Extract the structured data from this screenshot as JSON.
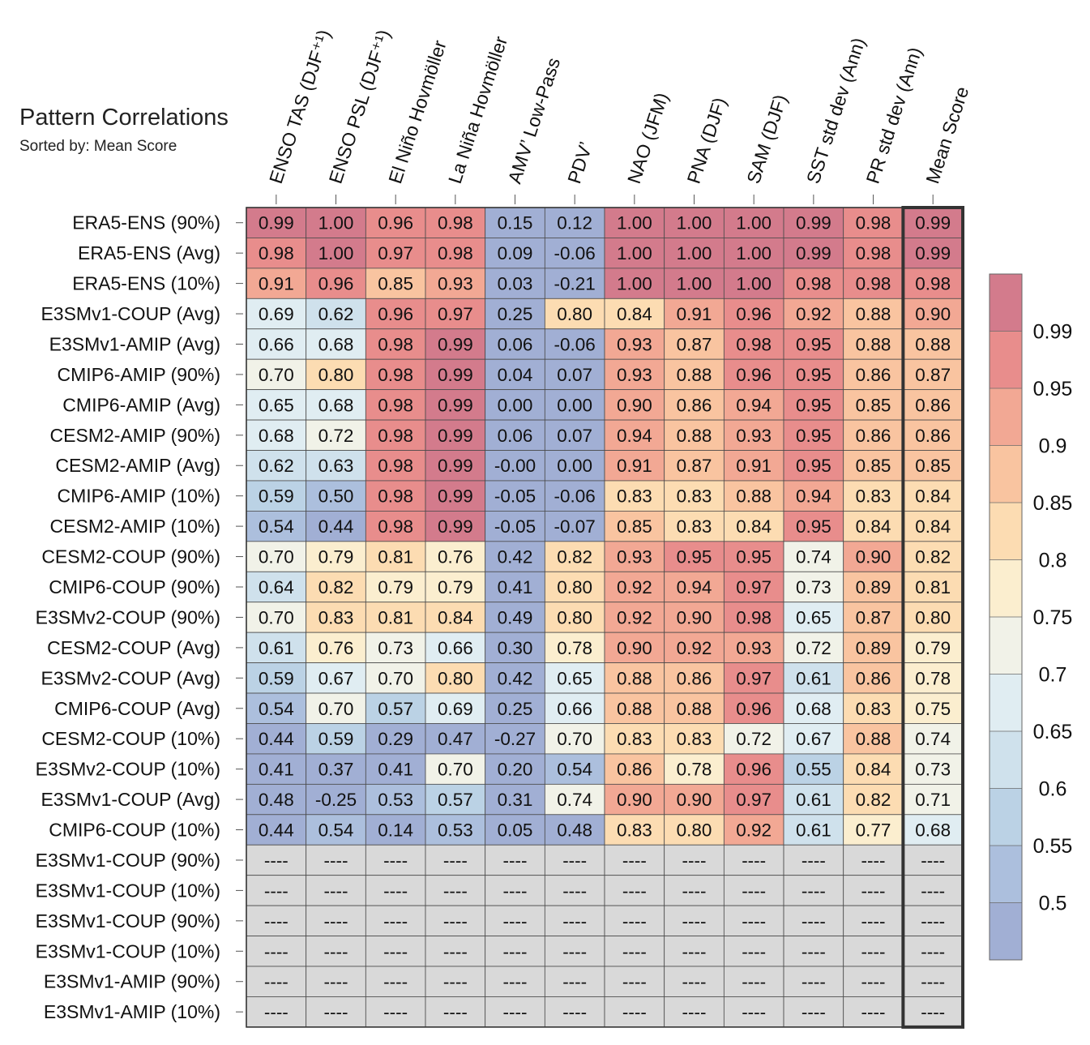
{
  "chart_data": {
    "type": "heatmap",
    "title": "Pattern Correlations",
    "subtitle": "Sorted by: Mean Score",
    "columns": [
      "ENSO TAS (DJF⁺¹)",
      "ENSO PSL (DJF⁺¹)",
      "El Niño Hovmöller",
      "La Niña Hovmöller",
      "AMV’ Low-Pass",
      "PDV’",
      "NAO (JFM)",
      "PNA (DJF)",
      "SAM (DJF)",
      "SST std dev (Ann)",
      "PR std dev (Ann)",
      "Mean Score"
    ],
    "highlighted_column": "Mean Score",
    "rows": [
      "ERA5-ENS (90%)",
      "ERA5-ENS (Avg)",
      "ERA5-ENS (10%)",
      "E3SMv1-COUP (Avg)",
      "E3SMv1-AMIP (Avg)",
      "CMIP6-AMIP (90%)",
      "CMIP6-AMIP (Avg)",
      "CESM2-AMIP (90%)",
      "CESM2-AMIP (Avg)",
      "CMIP6-AMIP (10%)",
      "CESM2-AMIP (10%)",
      "CESM2-COUP (90%)",
      "CMIP6-COUP (90%)",
      "E3SMv2-COUP (90%)",
      "CESM2-COUP (Avg)",
      "E3SMv2-COUP (Avg)",
      "CMIP6-COUP (Avg)",
      "CESM2-COUP (10%)",
      "E3SMv2-COUP (10%)",
      "E3SMv1-COUP (Avg)",
      "CMIP6-COUP (10%)",
      "E3SMv1-COUP (90%)",
      "E3SMv1-COUP (10%)",
      "E3SMv1-COUP (90%)",
      "E3SMv1-COUP (10%)",
      "E3SMv1-AMIP (90%)",
      "E3SMv1-AMIP (10%)"
    ],
    "values": [
      [
        "0.99",
        "1.00",
        "0.96",
        "0.98",
        "0.15",
        "0.12",
        "1.00",
        "1.00",
        "1.00",
        "0.99",
        "0.98",
        "0.99"
      ],
      [
        "0.98",
        "1.00",
        "0.97",
        "0.98",
        "0.09",
        "-0.06",
        "1.00",
        "1.00",
        "1.00",
        "0.99",
        "0.98",
        "0.99"
      ],
      [
        "0.91",
        "0.96",
        "0.85",
        "0.93",
        "0.03",
        "-0.21",
        "1.00",
        "1.00",
        "1.00",
        "0.98",
        "0.98",
        "0.98"
      ],
      [
        "0.69",
        "0.62",
        "0.96",
        "0.97",
        "0.25",
        "0.80",
        "0.84",
        "0.91",
        "0.96",
        "0.92",
        "0.88",
        "0.90"
      ],
      [
        "0.66",
        "0.68",
        "0.98",
        "0.99",
        "0.06",
        "-0.06",
        "0.93",
        "0.87",
        "0.98",
        "0.95",
        "0.88",
        "0.88"
      ],
      [
        "0.70",
        "0.80",
        "0.98",
        "0.99",
        "0.04",
        "0.07",
        "0.93",
        "0.88",
        "0.96",
        "0.95",
        "0.86",
        "0.87"
      ],
      [
        "0.65",
        "0.68",
        "0.98",
        "0.99",
        "0.00",
        "0.00",
        "0.90",
        "0.86",
        "0.94",
        "0.95",
        "0.85",
        "0.86"
      ],
      [
        "0.68",
        "0.72",
        "0.98",
        "0.99",
        "0.06",
        "0.07",
        "0.94",
        "0.88",
        "0.93",
        "0.95",
        "0.86",
        "0.86"
      ],
      [
        "0.62",
        "0.63",
        "0.98",
        "0.99",
        "-0.00",
        "0.00",
        "0.91",
        "0.87",
        "0.91",
        "0.95",
        "0.85",
        "0.85"
      ],
      [
        "0.59",
        "0.50",
        "0.98",
        "0.99",
        "-0.05",
        "-0.06",
        "0.83",
        "0.83",
        "0.88",
        "0.94",
        "0.83",
        "0.84"
      ],
      [
        "0.54",
        "0.44",
        "0.98",
        "0.99",
        "-0.05",
        "-0.07",
        "0.85",
        "0.83",
        "0.84",
        "0.95",
        "0.84",
        "0.84"
      ],
      [
        "0.70",
        "0.79",
        "0.81",
        "0.76",
        "0.42",
        "0.82",
        "0.93",
        "0.95",
        "0.95",
        "0.74",
        "0.90",
        "0.82"
      ],
      [
        "0.64",
        "0.82",
        "0.79",
        "0.79",
        "0.41",
        "0.80",
        "0.92",
        "0.94",
        "0.97",
        "0.73",
        "0.89",
        "0.81"
      ],
      [
        "0.70",
        "0.83",
        "0.81",
        "0.84",
        "0.49",
        "0.80",
        "0.92",
        "0.90",
        "0.98",
        "0.65",
        "0.87",
        "0.80"
      ],
      [
        "0.61",
        "0.76",
        "0.73",
        "0.66",
        "0.30",
        "0.78",
        "0.90",
        "0.92",
        "0.93",
        "0.72",
        "0.89",
        "0.79"
      ],
      [
        "0.59",
        "0.67",
        "0.70",
        "0.80",
        "0.42",
        "0.65",
        "0.88",
        "0.86",
        "0.97",
        "0.61",
        "0.86",
        "0.78"
      ],
      [
        "0.54",
        "0.70",
        "0.57",
        "0.69",
        "0.25",
        "0.66",
        "0.88",
        "0.88",
        "0.96",
        "0.68",
        "0.83",
        "0.75"
      ],
      [
        "0.44",
        "0.59",
        "0.29",
        "0.47",
        "-0.27",
        "0.70",
        "0.83",
        "0.83",
        "0.72",
        "0.67",
        "0.88",
        "0.74"
      ],
      [
        "0.41",
        "0.37",
        "0.41",
        "0.70",
        "0.20",
        "0.54",
        "0.86",
        "0.78",
        "0.96",
        "0.55",
        "0.84",
        "0.73"
      ],
      [
        "0.48",
        "-0.25",
        "0.53",
        "0.57",
        "0.31",
        "0.74",
        "0.90",
        "0.90",
        "0.97",
        "0.61",
        "0.82",
        "0.71"
      ],
      [
        "0.44",
        "0.54",
        "0.14",
        "0.53",
        "0.05",
        "0.48",
        "0.83",
        "0.80",
        "0.92",
        "0.61",
        "0.77",
        "0.68"
      ],
      [
        "----",
        "----",
        "----",
        "----",
        "----",
        "----",
        "----",
        "----",
        "----",
        "----",
        "----",
        "----"
      ],
      [
        "----",
        "----",
        "----",
        "----",
        "----",
        "----",
        "----",
        "----",
        "----",
        "----",
        "----",
        "----"
      ],
      [
        "----",
        "----",
        "----",
        "----",
        "----",
        "----",
        "----",
        "----",
        "----",
        "----",
        "----",
        "----"
      ],
      [
        "----",
        "----",
        "----",
        "----",
        "----",
        "----",
        "----",
        "----",
        "----",
        "----",
        "----",
        "----"
      ],
      [
        "----",
        "----",
        "----",
        "----",
        "----",
        "----",
        "----",
        "----",
        "----",
        "----",
        "----",
        "----"
      ],
      [
        "----",
        "----",
        "----",
        "----",
        "----",
        "----",
        "----",
        "----",
        "----",
        "----",
        "----",
        "----"
      ]
    ],
    "missing_marker": "----",
    "colorbar": {
      "labels": [
        "0.99",
        "0.95",
        "0.9",
        "0.85",
        "0.8",
        "0.75",
        "0.7",
        "0.65",
        "0.6",
        "0.55",
        "0.5"
      ],
      "bounds": [
        0.5,
        0.55,
        0.6,
        0.65,
        0.7,
        0.75,
        0.8,
        0.85,
        0.9,
        0.95,
        0.99
      ],
      "colors": [
        "#a1afd4",
        "#acbfdd",
        "#bbd2e5",
        "#cfe1ec",
        "#e0edf2",
        "#f1f2e8",
        "#fbeecf",
        "#fcdcb2",
        "#f9c4a0",
        "#f2a894",
        "#e88d8c",
        "#d37b8c"
      ],
      "missing_color": "#d9d9d9"
    }
  }
}
